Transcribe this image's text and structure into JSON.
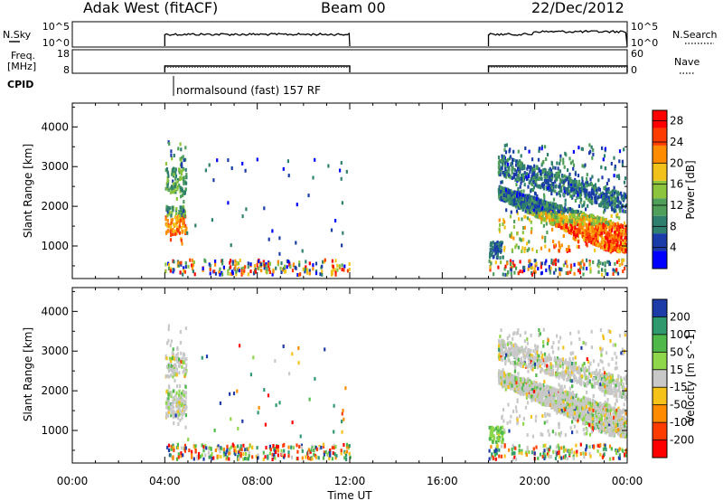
{
  "header": {
    "station": "Adak West (fitACF)",
    "beam": "Beam 00",
    "date": "22/Dec/2012"
  },
  "top_panels": {
    "nsky_label": "N.Sky",
    "nsky_ticks": [
      "10^5",
      "10^0"
    ],
    "nsearch_label": "N.Search",
    "nsearch_ticks": [
      "10^5",
      "10^0"
    ],
    "freq_label_1": "Freq.",
    "freq_label_2": "[MHz]",
    "freq_ticks": [
      "18",
      "8"
    ],
    "nave_label": "Nave",
    "nave_ticks": [
      "60",
      "0"
    ],
    "cpid_label": "CPID",
    "cpid_text": "normalsound (fast) 157 RF"
  },
  "chart_data": [
    {
      "type": "heatmap",
      "title": "",
      "xlabel": "Time UT",
      "ylabel": "Slant Range [km]",
      "x_ticks": [
        "00:00",
        "04:00",
        "08:00",
        "12:00",
        "16:00",
        "20:00",
        "00:00"
      ],
      "xlim_hours": [
        0,
        24
      ],
      "y_ticks": [
        1000,
        2000,
        3000,
        4000
      ],
      "ylim": [
        180,
        4600
      ],
      "data_intervals_hours": [
        [
          4,
          12
        ],
        [
          18,
          24
        ]
      ],
      "colorbar": {
        "label": "Power [dB]",
        "ticks": [
          4,
          8,
          12,
          16,
          20,
          24,
          28
        ],
        "range": [
          0,
          30
        ],
        "colors": [
          "#0000ff",
          "#1a3ca8",
          "#2e7f6e",
          "#4f9f5a",
          "#8cc43c",
          "#f2c21a",
          "#ff8c00",
          "#ff3c00",
          "#ff0000"
        ]
      }
    },
    {
      "type": "heatmap",
      "title": "",
      "xlabel": "Time UT",
      "ylabel": "Slant Range [km]",
      "x_ticks": [
        "00:00",
        "04:00",
        "08:00",
        "12:00",
        "16:00",
        "20:00",
        "00:00"
      ],
      "xlim_hours": [
        0,
        24
      ],
      "y_ticks": [
        1000,
        2000,
        3000,
        4000
      ],
      "ylim": [
        180,
        4600
      ],
      "data_intervals_hours": [
        [
          4,
          12
        ],
        [
          18,
          24
        ]
      ],
      "colorbar": {
        "label": "Velocity [m s^-1]",
        "ticks": [
          "200",
          "100",
          "50",
          "15",
          "-15",
          "-50",
          "-100",
          "-200"
        ],
        "colors": [
          "#1e3ca8",
          "#2e9a6e",
          "#4fb84a",
          "#8ed64a",
          "#c8c8c8",
          "#f5c21a",
          "#ff8c00",
          "#ff3c00",
          "#ff0000"
        ]
      }
    }
  ]
}
